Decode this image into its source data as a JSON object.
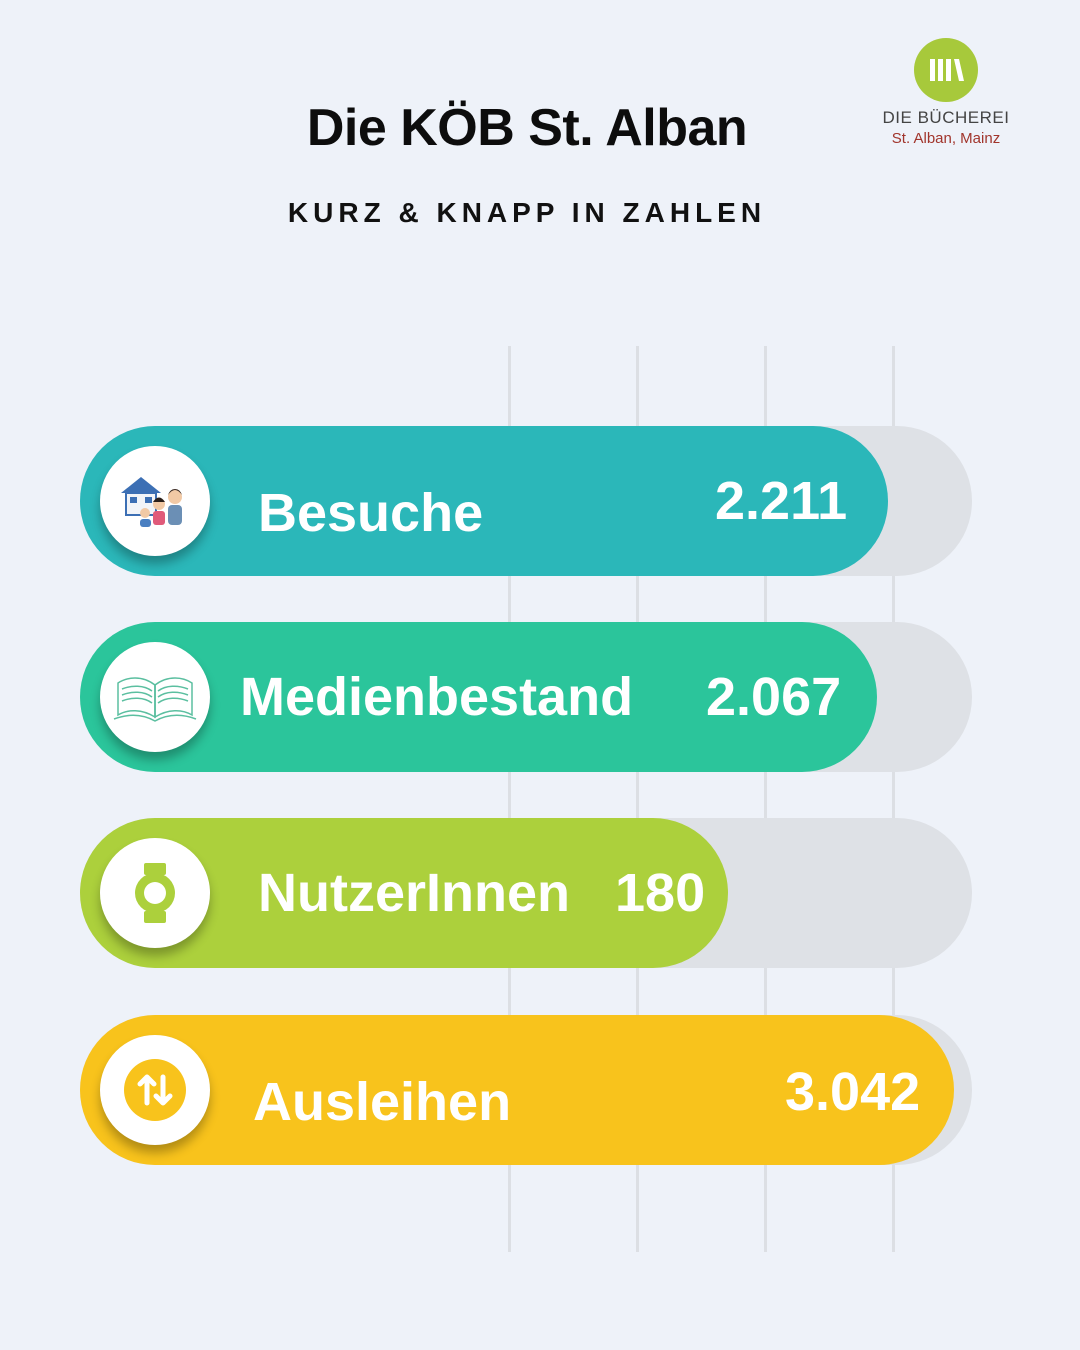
{
  "header": {
    "title": "Die KÖB St. Alban",
    "subtitle": "KURZ & KNAPP IN ZAHLEN"
  },
  "logo": {
    "line1": "DIE BÜCHEREI",
    "line2": "St. Alban, Mainz",
    "color": "#a7c93b",
    "accent": "#a1352c"
  },
  "chart_data": {
    "type": "bar",
    "orientation": "horizontal",
    "categories": [
      "Besuche",
      "Medienbestand",
      "NutzerInnen",
      "Ausleihen"
    ],
    "values": [
      2211,
      2067,
      180,
      3042
    ],
    "value_labels": [
      "2.211",
      "2.067",
      "180",
      "3.042"
    ],
    "colors": [
      "#2bb7b9",
      "#2bc59b",
      "#acd03c",
      "#f8c31c"
    ],
    "icons": [
      "family-house-icon",
      "open-book-icon",
      "smartwatch-icon",
      "swap-arrows-icon"
    ],
    "grid": true
  }
}
